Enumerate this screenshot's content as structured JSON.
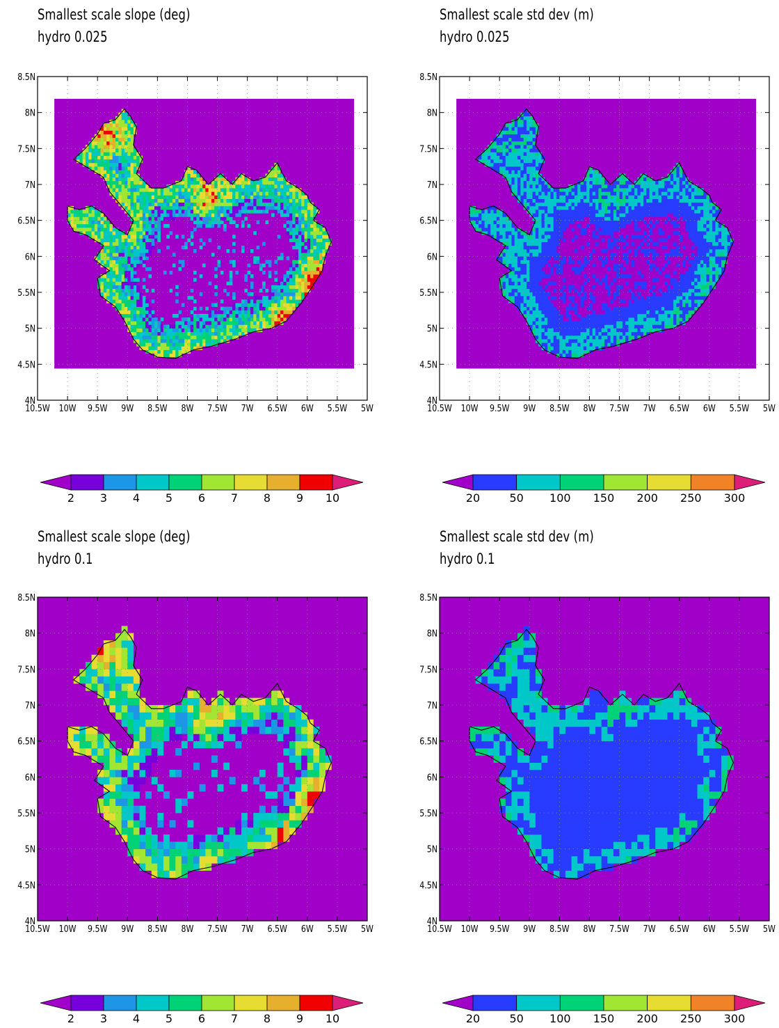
{
  "panels": [
    {
      "title1": "Smallest scale slope (deg)",
      "title2": "hydro 0.025",
      "resolution": "0.025",
      "variable": "slope",
      "x_ticks": [
        "10.5W",
        "10W",
        "9.5W",
        "9W",
        "8.5W",
        "8W",
        "7.5W",
        "7W",
        "6.5W",
        "6W",
        "5.5W",
        "5W"
      ],
      "y_ticks": [
        "4N",
        "4.5N",
        "5N",
        "5.5N",
        "6N",
        "6.5N",
        "7N",
        "7.5N",
        "8N",
        "8.5N"
      ],
      "colorbar": {
        "labels": [
          "2",
          "3",
          "4",
          "5",
          "6",
          "7",
          "8",
          "9",
          "10"
        ],
        "colors": [
          "#a000c8",
          "#7800dc",
          "#1e96e6",
          "#00c8c8",
          "#00d278",
          "#a0e632",
          "#e6dc32",
          "#e6af2d",
          "#f00000",
          "#dc1e78"
        ]
      }
    },
    {
      "title1": "Smallest scale std dev (m)",
      "title2": "hydro 0.025",
      "resolution": "0.025",
      "variable": "stddev",
      "x_ticks": [
        "10.5W",
        "10W",
        "9.5W",
        "9W",
        "8.5W",
        "8W",
        "7.5W",
        "7W",
        "6.5W",
        "6W",
        "5.5W",
        "5W"
      ],
      "y_ticks": [
        "4N",
        "4.5N",
        "5N",
        "5.5N",
        "6N",
        "6.5N",
        "7N",
        "7.5N",
        "8N",
        "8.5N"
      ],
      "colorbar": {
        "labels": [
          "20",
          "50",
          "100",
          "150",
          "200",
          "250",
          "300"
        ],
        "colors": [
          "#a000c8",
          "#283cff",
          "#00c8c8",
          "#00d278",
          "#a0e632",
          "#e6dc32",
          "#f08228",
          "#dc1e78"
        ]
      }
    },
    {
      "title1": "Smallest scale slope (deg)",
      "title2": "hydro 0.1",
      "resolution": "0.1",
      "variable": "slope",
      "x_ticks": [
        "10.5W",
        "10W",
        "9.5W",
        "9W",
        "8.5W",
        "8W",
        "7.5W",
        "7W",
        "6.5W",
        "6W",
        "5.5W",
        "5W"
      ],
      "y_ticks": [
        "4N",
        "4.5N",
        "5N",
        "5.5N",
        "6N",
        "6.5N",
        "7N",
        "7.5N",
        "8N",
        "8.5N"
      ],
      "colorbar": {
        "labels": [
          "2",
          "3",
          "4",
          "5",
          "6",
          "7",
          "8",
          "9",
          "10"
        ],
        "colors": [
          "#a000c8",
          "#7800dc",
          "#1e96e6",
          "#00c8c8",
          "#00d278",
          "#a0e632",
          "#e6dc32",
          "#e6af2d",
          "#f00000",
          "#dc1e78"
        ]
      }
    },
    {
      "title1": "Smallest scale std dev (m)",
      "title2": "hydro 0.1",
      "resolution": "0.1",
      "variable": "stddev",
      "x_ticks": [
        "10.5W",
        "10W",
        "9.5W",
        "9W",
        "8.5W",
        "8W",
        "7.5W",
        "7W",
        "6.5W",
        "6W",
        "5.5W",
        "5W"
      ],
      "y_ticks": [
        "4N",
        "4.5N",
        "5N",
        "5.5N",
        "6N",
        "6.5N",
        "7N",
        "7.5N",
        "8N",
        "8.5N"
      ],
      "colorbar": {
        "labels": [
          "20",
          "50",
          "100",
          "150",
          "200",
          "250",
          "300"
        ],
        "colors": [
          "#a000c8",
          "#283cff",
          "#00c8c8",
          "#00d278",
          "#a0e632",
          "#e6dc32",
          "#f08228",
          "#dc1e78"
        ]
      }
    }
  ]
}
